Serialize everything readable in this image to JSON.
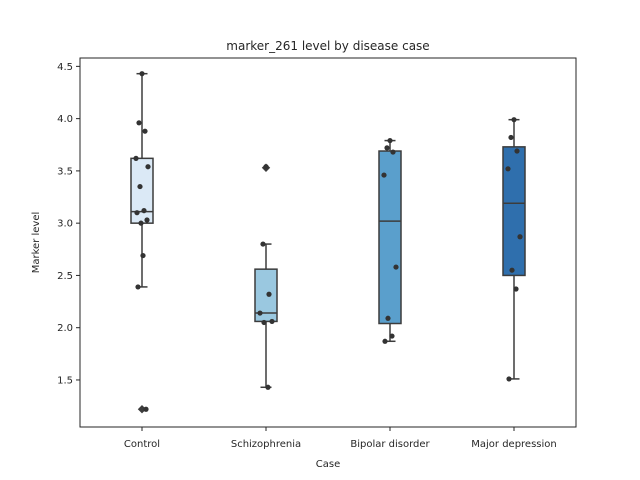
{
  "chart_data": {
    "type": "box",
    "title": "marker_261 level by disease case",
    "xlabel": "Case",
    "ylabel": "Marker level",
    "ylim": [
      1.05,
      4.58
    ],
    "yticks": [
      "1.5",
      "2.0",
      "2.5",
      "3.0",
      "3.5",
      "4.0",
      "4.5"
    ],
    "ytick_values": [
      1.5,
      2.0,
      2.5,
      3.0,
      3.5,
      4.0,
      4.5
    ],
    "categories": [
      "Control",
      "Schizophrenia",
      "Bipolar disorder",
      "Major depression"
    ],
    "colors": [
      "#dbe9f6",
      "#9ac8e0",
      "#5a9fcc",
      "#2f6fad"
    ],
    "boxes": [
      {
        "q1": 3.0,
        "median": 3.11,
        "q3": 3.62,
        "whisker_low": 2.39,
        "whisker_high": 4.43,
        "outliers": [
          1.22
        ]
      },
      {
        "q1": 2.06,
        "median": 2.14,
        "q3": 2.56,
        "whisker_low": 1.43,
        "whisker_high": 2.8,
        "outliers": [
          3.53
        ]
      },
      {
        "q1": 2.04,
        "median": 3.02,
        "q3": 3.69,
        "whisker_low": 1.87,
        "whisker_high": 3.79,
        "outliers": []
      },
      {
        "q1": 2.5,
        "median": 3.19,
        "q3": 3.73,
        "whisker_low": 1.51,
        "whisker_high": 3.99,
        "outliers": []
      }
    ],
    "points": [
      [
        4.43,
        3.96,
        3.88,
        3.62,
        3.54,
        3.35,
        3.12,
        3.1,
        3.03,
        3.0,
        2.69,
        2.39,
        1.22
      ],
      [
        3.54,
        2.8,
        2.32,
        2.14,
        2.06,
        2.05,
        1.43
      ],
      [
        3.79,
        3.72,
        3.68,
        3.46,
        2.58,
        2.09,
        1.92,
        1.87
      ],
      [
        3.99,
        3.82,
        3.69,
        3.52,
        2.87,
        2.55,
        2.37,
        1.51
      ]
    ]
  }
}
